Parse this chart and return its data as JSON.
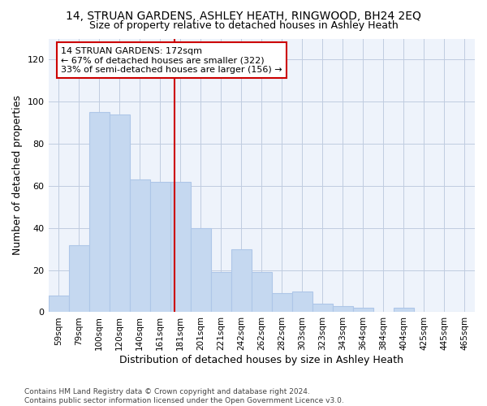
{
  "title": "14, STRUAN GARDENS, ASHLEY HEATH, RINGWOOD, BH24 2EQ",
  "subtitle": "Size of property relative to detached houses in Ashley Heath",
  "xlabel": "Distribution of detached houses by size in Ashley Heath",
  "ylabel": "Number of detached properties",
  "categories": [
    "59sqm",
    "79sqm",
    "100sqm",
    "120sqm",
    "140sqm",
    "161sqm",
    "181sqm",
    "201sqm",
    "221sqm",
    "242sqm",
    "262sqm",
    "282sqm",
    "303sqm",
    "323sqm",
    "343sqm",
    "364sqm",
    "384sqm",
    "404sqm",
    "425sqm",
    "445sqm",
    "465sqm"
  ],
  "values": [
    8,
    32,
    95,
    94,
    63,
    62,
    62,
    40,
    19,
    30,
    19,
    9,
    10,
    4,
    3,
    2,
    0,
    2,
    0,
    0,
    0
  ],
  "bar_color": "#c5d8f0",
  "bar_edge_color": "#aec6e8",
  "marker_label_line1": "14 STRUAN GARDENS: 172sqm",
  "annotation_line1": "← 67% of detached houses are smaller (322)",
  "annotation_line2": "33% of semi-detached houses are larger (156) →",
  "annotation_box_color": "#cc0000",
  "annotation_fill": "#ffffff",
  "red_line_x": 5.72,
  "ylim": [
    0,
    130
  ],
  "yticks": [
    0,
    20,
    40,
    60,
    80,
    100,
    120
  ],
  "footnote1": "Contains HM Land Registry data © Crown copyright and database right 2024.",
  "footnote2": "Contains public sector information licensed under the Open Government Licence v3.0.",
  "fig_width": 6.0,
  "fig_height": 5.0,
  "dpi": 100,
  "bg_color": "#eef3fb",
  "plot_bg_color": "#eef3fb"
}
